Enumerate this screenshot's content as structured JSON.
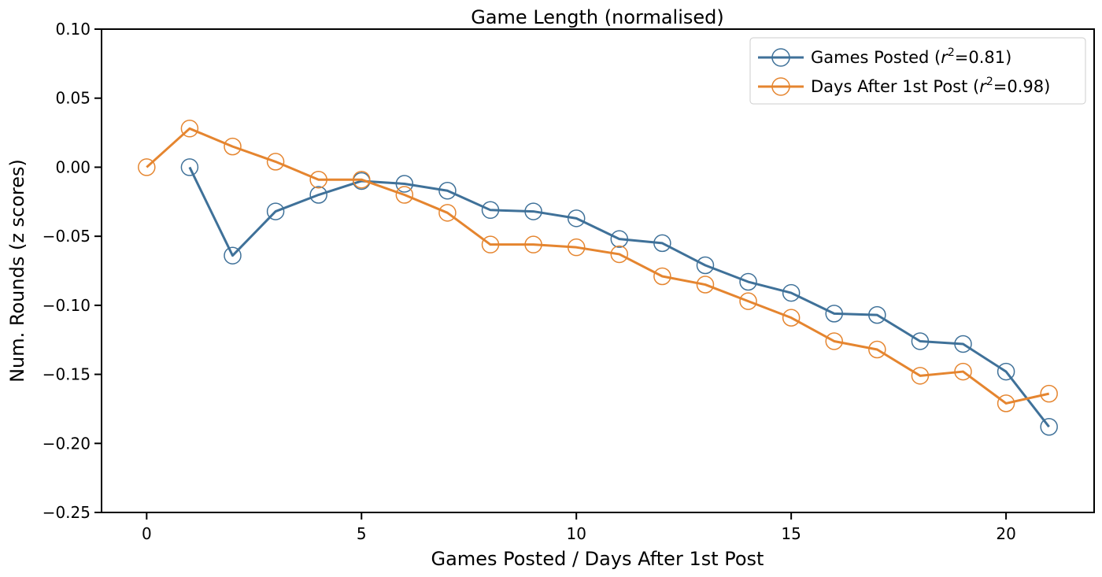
{
  "chart_data": {
    "type": "line",
    "title": "Game Length (normalised)",
    "xlabel": "Games Posted / Days After 1st Post",
    "ylabel": "Num. Rounds (z scores)",
    "xlim": [
      -1.05,
      22.05
    ],
    "ylim": [
      -0.25,
      0.1
    ],
    "x_ticks": [
      0,
      5,
      10,
      15,
      20
    ],
    "x_tick_labels": [
      "0",
      "5",
      "10",
      "15",
      "20"
    ],
    "y_ticks": [
      0.1,
      0.05,
      0.0,
      -0.05,
      -0.1,
      -0.15,
      -0.2,
      -0.25
    ],
    "y_tick_labels": [
      "0.10",
      "0.05",
      "0.00",
      "−0.05",
      "−0.10",
      "−0.15",
      "−0.20",
      "−0.25"
    ],
    "grid": false,
    "legend_position": "top-right",
    "series": [
      {
        "name": "Games Posted",
        "r2_label": "r",
        "r2_value": "=0.81)",
        "color": "#3f7199",
        "marker": "open-circle",
        "x": [
          1,
          2,
          3,
          4,
          5,
          6,
          7,
          8,
          9,
          10,
          11,
          12,
          13,
          14,
          15,
          16,
          17,
          18,
          19,
          20,
          21
        ],
        "y": [
          0.0,
          -0.064,
          -0.032,
          -0.02,
          -0.01,
          -0.012,
          -0.017,
          -0.031,
          -0.032,
          -0.037,
          -0.052,
          -0.055,
          -0.071,
          -0.083,
          -0.091,
          -0.106,
          -0.107,
          -0.126,
          -0.128,
          -0.148,
          -0.188
        ]
      },
      {
        "name": "Days After 1st Post",
        "r2_label": "r",
        "r2_value": "=0.98)",
        "color": "#e5852f",
        "marker": "open-circle",
        "x": [
          0,
          1,
          2,
          3,
          4,
          5,
          6,
          7,
          8,
          9,
          10,
          11,
          12,
          13,
          14,
          15,
          16,
          17,
          18,
          19,
          20,
          21
        ],
        "y": [
          0.0,
          0.028,
          0.015,
          0.004,
          -0.009,
          -0.009,
          -0.02,
          -0.033,
          -0.056,
          -0.056,
          -0.058,
          -0.063,
          -0.079,
          -0.085,
          -0.097,
          -0.109,
          -0.126,
          -0.132,
          -0.151,
          -0.148,
          -0.171,
          -0.164
        ]
      }
    ]
  }
}
